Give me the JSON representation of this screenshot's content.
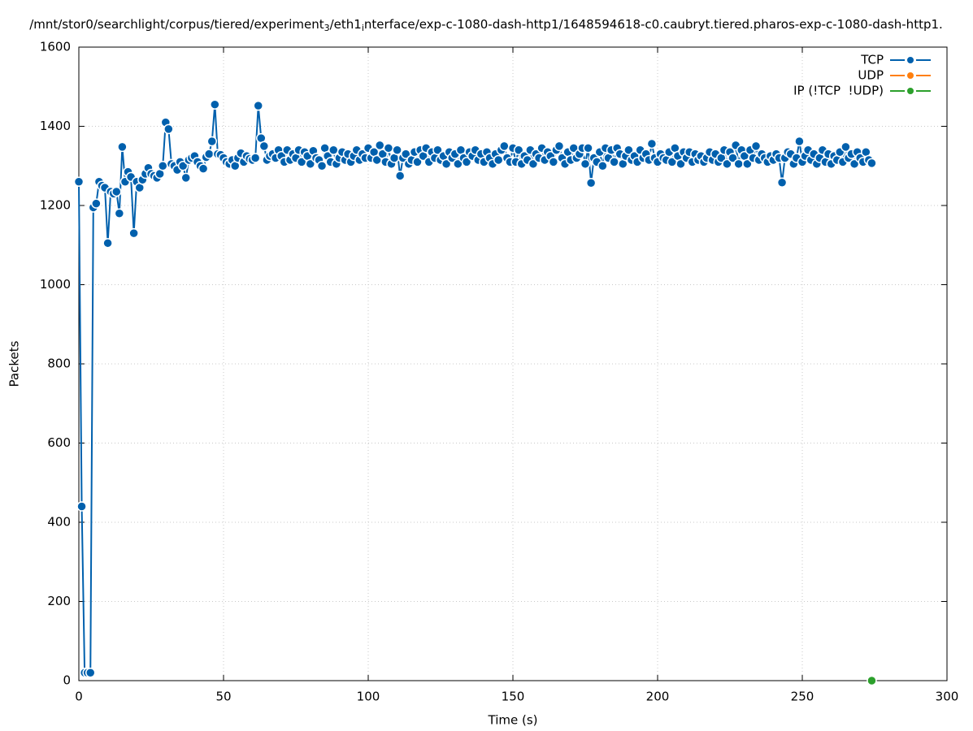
{
  "chart_data": {
    "type": "line",
    "title_parts": [
      "/mnt/stor0/searchlight/corpus/tiered/experiment",
      "3",
      "/eth1",
      "i",
      "nterface/exp-c-1080-dash-http1/1648594618-c0.caubryt.tiered.pharos-exp-c-1080-dash-http1."
    ],
    "xlabel": "Time (s)",
    "ylabel": "Packets",
    "xlim": [
      0,
      300
    ],
    "xticks": [
      0,
      50,
      100,
      150,
      200,
      250,
      300
    ],
    "ylim": [
      0,
      1600
    ],
    "yticks": [
      0,
      200,
      400,
      600,
      800,
      1000,
      1200,
      1400,
      1600
    ],
    "grid": true,
    "legend": "upper right",
    "series": [
      {
        "name": "TCP",
        "color": "#0060ad",
        "x": [
          0,
          1,
          2,
          3,
          4,
          5,
          6,
          7,
          8,
          9,
          10,
          11,
          12,
          13,
          14,
          15,
          16,
          17,
          18,
          19,
          20,
          21,
          22,
          23,
          24,
          25,
          26,
          27,
          28,
          29,
          30,
          31,
          32,
          33,
          34,
          35,
          36,
          37,
          38,
          39,
          40,
          41,
          42,
          43,
          44,
          45,
          46,
          47,
          48,
          49,
          50,
          51,
          52,
          53,
          54,
          55,
          56,
          57,
          58,
          59,
          60,
          61,
          62,
          63,
          64,
          65,
          66,
          67,
          68,
          69,
          70,
          71,
          72,
          73,
          74,
          75,
          76,
          77,
          78,
          79,
          80,
          81,
          82,
          83,
          84,
          85,
          86,
          87,
          88,
          89,
          90,
          91,
          92,
          93,
          94,
          95,
          96,
          97,
          98,
          99,
          100,
          101,
          102,
          103,
          104,
          105,
          106,
          107,
          108,
          109,
          110,
          111,
          112,
          113,
          114,
          115,
          116,
          117,
          118,
          119,
          120,
          121,
          122,
          123,
          124,
          125,
          126,
          127,
          128,
          129,
          130,
          131,
          132,
          133,
          134,
          135,
          136,
          137,
          138,
          139,
          140,
          141,
          142,
          143,
          144,
          145,
          146,
          147,
          148,
          149,
          150,
          151,
          152,
          153,
          154,
          155,
          156,
          157,
          158,
          159,
          160,
          161,
          162,
          163,
          164,
          165,
          166,
          167,
          168,
          169,
          170,
          171,
          172,
          173,
          174,
          175,
          176,
          177,
          178,
          179,
          180,
          181,
          182,
          183,
          184,
          185,
          186,
          187,
          188,
          189,
          190,
          191,
          192,
          193,
          194,
          195,
          196,
          197,
          198,
          199,
          200,
          201,
          202,
          203,
          204,
          205,
          206,
          207,
          208,
          209,
          210,
          211,
          212,
          213,
          214,
          215,
          216,
          217,
          218,
          219,
          220,
          221,
          222,
          223,
          224,
          225,
          226,
          227,
          228,
          229,
          230,
          231,
          232,
          233,
          234,
          235,
          236,
          237,
          238,
          239,
          240,
          241,
          242,
          243,
          244,
          245,
          246,
          247,
          248,
          249,
          250,
          251,
          252,
          253,
          254,
          255,
          256,
          257,
          258,
          259,
          260,
          261,
          262,
          263,
          264,
          265,
          266,
          267,
          268,
          269,
          270,
          271,
          272,
          273,
          274
        ],
        "values": [
          1260,
          440,
          20,
          20,
          20,
          1195,
          1205,
          1260,
          1250,
          1245,
          1105,
          1235,
          1230,
          1235,
          1180,
          1348,
          1260,
          1285,
          1272,
          1130,
          1260,
          1245,
          1265,
          1280,
          1295,
          1280,
          1275,
          1270,
          1280,
          1300,
          1410,
          1393,
          1305,
          1300,
          1290,
          1310,
          1300,
          1270,
          1315,
          1320,
          1325,
          1310,
          1300,
          1293,
          1322,
          1330,
          1362,
          1455,
          1330,
          1328,
          1320,
          1310,
          1305,
          1315,
          1300,
          1320,
          1332,
          1310,
          1325,
          1318,
          1315,
          1320,
          1452,
          1370,
          1350,
          1315,
          1325,
          1330,
          1320,
          1340,
          1325,
          1310,
          1340,
          1315,
          1330,
          1320,
          1340,
          1310,
          1335,
          1325,
          1305,
          1338,
          1320,
          1315,
          1300,
          1345,
          1325,
          1310,
          1340,
          1305,
          1320,
          1335,
          1315,
          1330,
          1310,
          1325,
          1340,
          1315,
          1330,
          1320,
          1345,
          1320,
          1335,
          1315,
          1352,
          1330,
          1310,
          1345,
          1305,
          1320,
          1340,
          1275,
          1320,
          1330,
          1305,
          1315,
          1335,
          1310,
          1340,
          1325,
          1345,
          1310,
          1335,
          1320,
          1340,
          1315,
          1325,
          1305,
          1335,
          1320,
          1330,
          1305,
          1340,
          1320,
          1310,
          1335,
          1325,
          1340,
          1315,
          1330,
          1310,
          1335,
          1320,
          1305,
          1330,
          1315,
          1340,
          1350,
          1320,
          1310,
          1345,
          1310,
          1340,
          1305,
          1325,
          1315,
          1340,
          1305,
          1330,
          1320,
          1345,
          1315,
          1335,
          1325,
          1310,
          1340,
          1350,
          1320,
          1305,
          1335,
          1315,
          1345,
          1320,
          1330,
          1345,
          1305,
          1345,
          1257,
          1320,
          1310,
          1335,
          1300,
          1345,
          1320,
          1340,
          1310,
          1345,
          1330,
          1305,
          1325,
          1340,
          1315,
          1325,
          1310,
          1340,
          1320,
          1330,
          1315,
          1356,
          1320,
          1310,
          1330,
          1320,
          1315,
          1335,
          1310,
          1345,
          1325,
          1305,
          1335,
          1320,
          1335,
          1310,
          1330,
          1315,
          1325,
          1310,
          1320,
          1335,
          1315,
          1330,
          1310,
          1320,
          1340,
          1305,
          1335,
          1320,
          1352,
          1305,
          1340,
          1325,
          1305,
          1340,
          1320,
          1350,
          1315,
          1330,
          1320,
          1310,
          1325,
          1315,
          1330,
          1320,
          1258,
          1320,
          1335,
          1330,
          1305,
          1320,
          1362,
          1310,
          1325,
          1340,
          1315,
          1330,
          1305,
          1320,
          1340,
          1310,
          1330,
          1305,
          1325,
          1315,
          1335,
          1310,
          1348,
          1320,
          1330,
          1305,
          1335,
          1320,
          1310,
          1335,
          1315,
          1307
        ]
      },
      {
        "name": "UDP",
        "color": "#ff7f0e",
        "x": [],
        "values": []
      },
      {
        "name": "IP (!TCP  !UDP)",
        "color": "#2ca02c",
        "x": [
          274
        ],
        "values": [
          0
        ]
      }
    ]
  }
}
